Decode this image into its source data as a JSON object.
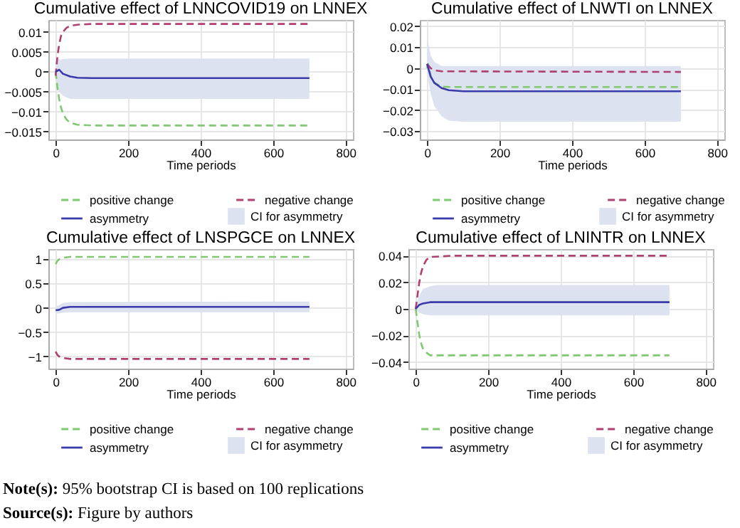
{
  "chart_data": [
    {
      "type": "line",
      "title": "Cumulative effect of LNNCOVID19 on LNNEX",
      "xlabel": "Time periods",
      "xlim": [
        -20,
        820
      ],
      "xticks": [
        0,
        200,
        400,
        600,
        800
      ],
      "ylim": [
        -0.017,
        0.013
      ],
      "yticks": [
        -0.015,
        -0.01,
        -0.005,
        0,
        0.005,
        0.01
      ],
      "grid": true,
      "legend": "bottom",
      "annotations": [
        "CI for asymmetry"
      ],
      "series": [
        {
          "name": "positive change",
          "color": "#80c872",
          "line_style": "dashed",
          "x": [
            0,
            5,
            10,
            15,
            20,
            30,
            40,
            60,
            100,
            700
          ],
          "values": [
            0,
            -0.004,
            -0.007,
            -0.009,
            -0.0105,
            -0.012,
            -0.0128,
            -0.0133,
            -0.0135,
            -0.0135
          ]
        },
        {
          "name": "negative change",
          "color": "#b04070",
          "line_style": "dashed",
          "x": [
            0,
            5,
            10,
            15,
            20,
            30,
            40,
            60,
            100,
            700
          ],
          "values": [
            -0.001,
            0.004,
            0.007,
            0.009,
            0.01,
            0.011,
            0.0115,
            0.0118,
            0.012,
            0.012
          ]
        },
        {
          "name": "asymmetry",
          "color": "#3a3aaa",
          "line_style": "solid",
          "x": [
            0,
            10,
            20,
            40,
            60,
            100,
            700
          ],
          "values": [
            0,
            0.0005,
            -0.0005,
            -0.0012,
            -0.0015,
            -0.0016,
            -0.0016
          ],
          "lower": [
            -0.002,
            -0.005,
            -0.006,
            -0.0068,
            -0.0068,
            -0.0068,
            -0.0068
          ],
          "upper": [
            0.004,
            0.003,
            0.0032,
            0.0033,
            0.0033,
            0.0033,
            0.0033
          ]
        }
      ]
    },
    {
      "type": "line",
      "title": "Cumulative effect of LNWTI on LNNEX",
      "xlabel": "Time periods",
      "xlim": [
        -20,
        820
      ],
      "xticks": [
        0,
        200,
        400,
        600,
        800
      ],
      "ylim": [
        -0.034,
        0.023
      ],
      "yticks": [
        -0.03,
        -0.02,
        -0.01,
        0,
        0.01,
        0.02
      ],
      "grid": true,
      "legend": "bottom",
      "annotations": [
        "CI for asymmetry"
      ],
      "series": [
        {
          "name": "positive change",
          "color": "#80c872",
          "line_style": "dashed",
          "x": [
            0,
            3,
            10,
            20,
            40,
            60,
            700
          ],
          "values": [
            0,
            0.002,
            -0.004,
            -0.007,
            -0.0088,
            -0.009,
            -0.009
          ]
        },
        {
          "name": "negative change",
          "color": "#b04070",
          "line_style": "dashed",
          "x": [
            0,
            10,
            20,
            40,
            700
          ],
          "values": [
            0.002,
            0,
            -0.001,
            -0.0015,
            -0.0018
          ]
        },
        {
          "name": "asymmetry",
          "color": "#3a3aaa",
          "line_style": "solid",
          "x": [
            0,
            10,
            20,
            40,
            60,
            100,
            700
          ],
          "values": [
            0.002,
            -0.004,
            -0.007,
            -0.0095,
            -0.0105,
            -0.011,
            -0.011
          ],
          "lower": [
            -0.002,
            -0.012,
            -0.018,
            -0.023,
            -0.025,
            -0.0255,
            -0.0255
          ],
          "upper": [
            0.015,
            0.006,
            0.003,
            0.001,
            0.001,
            0.001,
            0.001
          ]
        }
      ]
    },
    {
      "type": "line",
      "title": "Cumulative effect of LNSPGCE on LNNEX",
      "xlabel": "Time periods",
      "xlim": [
        -20,
        820
      ],
      "xticks": [
        0,
        200,
        400,
        600,
        800
      ],
      "ylim": [
        -1.25,
        1.21
      ],
      "yticks": [
        -1,
        -0.5,
        0,
        0.5,
        1
      ],
      "grid": true,
      "legend": "bottom",
      "annotations": [
        "CI for asymmetry"
      ],
      "series": [
        {
          "name": "positive change",
          "color": "#80c872",
          "line_style": "dashed",
          "x": [
            0,
            5,
            10,
            20,
            40,
            700
          ],
          "values": [
            0.9,
            0.97,
            1,
            1.03,
            1.05,
            1.05
          ]
        },
        {
          "name": "negative change",
          "color": "#b04070",
          "line_style": "dashed",
          "x": [
            0,
            5,
            10,
            20,
            40,
            700
          ],
          "values": [
            -0.9,
            -0.97,
            -1,
            -1.03,
            -1.05,
            -1.05
          ]
        },
        {
          "name": "asymmetry",
          "color": "#3a3aaa",
          "line_style": "solid",
          "x": [
            0,
            10,
            20,
            40,
            700
          ],
          "values": [
            -0.05,
            -0.04,
            0,
            0.02,
            0.02
          ],
          "lower": [
            -0.12,
            -0.11,
            -0.1,
            -0.09,
            -0.09
          ],
          "upper": [
            0.02,
            0.06,
            0.1,
            0.12,
            0.13
          ]
        }
      ]
    },
    {
      "type": "line",
      "title": "Cumulative effect of LNINTR on LNNEX",
      "xlabel": "Time periods",
      "xlim": [
        -20,
        820
      ],
      "xticks": [
        0,
        200,
        400,
        600,
        800
      ],
      "ylim": [
        -0.045,
        0.045
      ],
      "yticks": [
        -0.04,
        -0.02,
        0,
        0.02,
        0.04
      ],
      "grid": true,
      "legend": "bottom",
      "annotations": [
        "CI for asymmetry",
        "Note(s): 95% bootstrap CI is based on 100 replications",
        "Source(s): Figure by authors"
      ],
      "series": [
        {
          "name": "positive change",
          "color": "#80c872",
          "line_style": "dashed",
          "x": [
            0,
            5,
            10,
            15,
            20,
            30,
            40,
            700
          ],
          "values": [
            0,
            -0.01,
            -0.02,
            -0.026,
            -0.03,
            -0.033,
            -0.035,
            -0.035
          ]
        },
        {
          "name": "negative change",
          "color": "#b04070",
          "line_style": "dashed",
          "x": [
            0,
            5,
            10,
            15,
            20,
            30,
            40,
            100,
            700
          ],
          "values": [
            0,
            0.01,
            0.02,
            0.027,
            0.032,
            0.037,
            0.039,
            0.04,
            0.04
          ]
        },
        {
          "name": "asymmetry",
          "color": "#3a3aaa",
          "line_style": "solid",
          "x": [
            0,
            10,
            20,
            40,
            60,
            700
          ],
          "values": [
            0,
            0.003,
            0.004,
            0.005,
            0.005,
            0.005
          ],
          "lower": [
            0,
            -0.003,
            -0.004,
            -0.005,
            -0.005,
            -0.005
          ],
          "upper": [
            0.002,
            0.01,
            0.015,
            0.017,
            0.018,
            0.018
          ]
        }
      ]
    }
  ]
}
